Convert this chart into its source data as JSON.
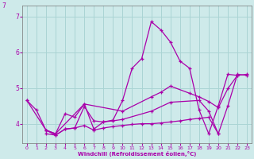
{
  "xlabel": "Windchill (Refroidissement éolien,°C)",
  "background_color": "#ceeaea",
  "grid_color": "#aad4d4",
  "line_color": "#aa00aa",
  "xlim": [
    -0.5,
    23.5
  ],
  "ylim": [
    3.45,
    7.3
  ],
  "yticks": [
    4,
    5,
    6,
    7
  ],
  "xticks": [
    0,
    1,
    2,
    3,
    4,
    5,
    6,
    7,
    8,
    9,
    10,
    11,
    12,
    13,
    14,
    15,
    16,
    17,
    18,
    19,
    20,
    21,
    22,
    23
  ],
  "series1": [
    [
      0,
      4.65
    ],
    [
      1,
      4.38
    ],
    [
      2,
      3.82
    ],
    [
      3,
      3.72
    ],
    [
      4,
      4.28
    ],
    [
      5,
      4.18
    ],
    [
      6,
      4.55
    ],
    [
      7,
      3.85
    ],
    [
      8,
      4.05
    ],
    [
      9,
      4.1
    ],
    [
      10,
      4.65
    ],
    [
      11,
      5.55
    ],
    [
      12,
      5.82
    ],
    [
      13,
      6.85
    ],
    [
      14,
      6.62
    ],
    [
      15,
      6.28
    ],
    [
      16,
      5.75
    ],
    [
      17,
      5.55
    ],
    [
      18,
      4.38
    ],
    [
      19,
      3.72
    ],
    [
      20,
      4.5
    ],
    [
      21,
      5.38
    ],
    [
      22,
      5.35
    ]
  ],
  "series2": [
    [
      0,
      4.65
    ],
    [
      2,
      3.82
    ],
    [
      3,
      3.72
    ],
    [
      6,
      4.55
    ],
    [
      10,
      4.35
    ],
    [
      13,
      4.75
    ],
    [
      14,
      4.88
    ],
    [
      15,
      5.05
    ],
    [
      17,
      4.85
    ],
    [
      18,
      4.75
    ],
    [
      19,
      4.62
    ],
    [
      20,
      4.45
    ],
    [
      21,
      4.98
    ],
    [
      22,
      5.35
    ],
    [
      23,
      5.38
    ]
  ],
  "series3": [
    [
      2,
      3.82
    ],
    [
      3,
      3.68
    ],
    [
      4,
      3.85
    ],
    [
      5,
      3.88
    ],
    [
      6,
      3.95
    ],
    [
      7,
      3.82
    ],
    [
      8,
      3.88
    ],
    [
      9,
      3.92
    ],
    [
      10,
      3.95
    ],
    [
      11,
      3.98
    ],
    [
      12,
      4.0
    ],
    [
      13,
      4.0
    ],
    [
      14,
      4.02
    ],
    [
      15,
      4.05
    ],
    [
      16,
      4.08
    ],
    [
      17,
      4.12
    ],
    [
      18,
      4.15
    ],
    [
      19,
      4.18
    ],
    [
      20,
      3.72
    ],
    [
      21,
      4.5
    ],
    [
      22,
      5.38
    ],
    [
      23,
      5.35
    ]
  ],
  "series4": [
    [
      2,
      3.72
    ],
    [
      3,
      3.68
    ],
    [
      4,
      3.85
    ],
    [
      5,
      3.88
    ],
    [
      6,
      4.48
    ],
    [
      7,
      4.08
    ],
    [
      8,
      4.05
    ],
    [
      9,
      4.08
    ],
    [
      10,
      4.12
    ],
    [
      13,
      4.35
    ],
    [
      15,
      4.6
    ],
    [
      18,
      4.65
    ],
    [
      19,
      4.35
    ],
    [
      20,
      3.72
    ]
  ]
}
